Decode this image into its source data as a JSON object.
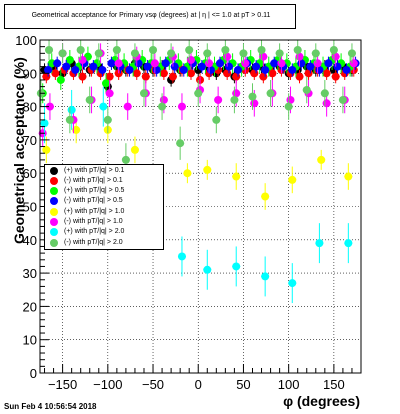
{
  "chart_data": {
    "type": "scatter",
    "title": "Geometrical acceptance for Primary vsφ (degrees) at | η | <= 1.0 at pT > 0.11",
    "xlabel": "φ (degrees)",
    "ylabel": "Geometrical acceptance (%)",
    "xlim": [
      -175,
      180
    ],
    "ylim": [
      0,
      100
    ],
    "x_ticks": [
      "−150",
      "−100",
      "−50",
      "0",
      "50",
      "100",
      "150"
    ],
    "x_tick_values": [
      -150,
      -100,
      -50,
      0,
      50,
      100,
      150
    ],
    "y_ticks": [
      "0",
      "10",
      "20",
      "30",
      "40",
      "50",
      "60",
      "70",
      "80",
      "90",
      "100"
    ],
    "y_tick_values": [
      0,
      10,
      20,
      30,
      40,
      50,
      60,
      70,
      80,
      90,
      100
    ],
    "grid": true,
    "legend_position": "left-middle",
    "series": [
      {
        "name": "(+) with pT/|q| > 0.1",
        "color": "#000000",
        "x": [
          -170,
          -160,
          -150,
          -140,
          -130,
          -120,
          -110,
          -100,
          -90,
          -80,
          -70,
          -60,
          -50,
          -40,
          -30,
          -20,
          -10,
          0,
          10,
          20,
          30,
          40,
          50,
          60,
          70,
          80,
          90,
          100,
          110,
          120,
          130,
          140,
          150,
          160,
          170
        ],
        "y": [
          91,
          92,
          90,
          93,
          92,
          91,
          92,
          86,
          92,
          91,
          93,
          92,
          91,
          92,
          88,
          91,
          92,
          91,
          92,
          90,
          91,
          89,
          92,
          91,
          92,
          91,
          92,
          90,
          91,
          92,
          91,
          92,
          91,
          92,
          91
        ],
        "err": [
          2,
          2,
          2,
          2,
          2,
          2,
          2,
          2,
          2,
          2,
          2,
          2,
          2,
          2,
          2,
          2,
          2,
          2,
          2,
          2,
          2,
          2,
          2,
          2,
          2,
          2,
          2,
          2,
          2,
          2,
          2,
          2,
          2,
          2,
          2
        ]
      },
      {
        "name": "(-) with pT/|q| > 0.1",
        "color": "#ff0000",
        "x": [
          -168,
          -158,
          -148,
          -138,
          -128,
          -118,
          -108,
          -98,
          -88,
          -78,
          -68,
          -58,
          -48,
          -38,
          -28,
          -18,
          -8,
          2,
          12,
          22,
          32,
          42,
          52,
          62,
          72,
          82,
          92,
          102,
          112,
          122,
          132,
          142,
          152,
          162,
          172
        ],
        "y": [
          89,
          90,
          91,
          90,
          89,
          91,
          90,
          89,
          90,
          91,
          90,
          89,
          91,
          90,
          89,
          91,
          90,
          88,
          90,
          91,
          90,
          89,
          91,
          90,
          89,
          90,
          91,
          90,
          89,
          90,
          91,
          90,
          89,
          90,
          91
        ],
        "err": [
          2,
          2,
          2,
          2,
          2,
          2,
          2,
          2,
          2,
          2,
          2,
          2,
          2,
          2,
          2,
          2,
          2,
          2,
          2,
          2,
          2,
          2,
          2,
          2,
          2,
          2,
          2,
          2,
          2,
          2,
          2,
          2,
          2,
          2,
          2
        ]
      },
      {
        "name": "(+) with pT/|q| > 0.5",
        "color": "#00ff00",
        "x": [
          -172,
          -162,
          -152,
          -142,
          -132,
          -122,
          -112,
          -102,
          -92,
          -82,
          -72,
          -62,
          -52,
          -42,
          -32,
          -22,
          -12,
          -2,
          8,
          18,
          28,
          38,
          48,
          58,
          68,
          78,
          88,
          98,
          108,
          118,
          128,
          138,
          148,
          158,
          168
        ],
        "y": [
          84,
          93,
          88,
          94,
          92,
          95,
          93,
          87,
          94,
          93,
          92,
          94,
          93,
          92,
          94,
          93,
          92,
          94,
          93,
          92,
          94,
          93,
          92,
          94,
          93,
          92,
          94,
          93,
          92,
          94,
          93,
          92,
          94,
          93,
          92
        ],
        "err": [
          3,
          3,
          3,
          3,
          3,
          3,
          3,
          3,
          3,
          3,
          3,
          3,
          3,
          3,
          3,
          3,
          3,
          3,
          3,
          3,
          3,
          3,
          3,
          3,
          3,
          3,
          3,
          3,
          3,
          3,
          3,
          3,
          3,
          3,
          3
        ]
      },
      {
        "name": "(-) with pT/|q| > 0.5",
        "color": "#0000ff",
        "x": [
          -166,
          -156,
          -146,
          -136,
          -126,
          -116,
          -106,
          -96,
          -86,
          -76,
          -66,
          -56,
          -46,
          -36,
          -26,
          -16,
          -6,
          4,
          14,
          24,
          34,
          44,
          54,
          64,
          74,
          84,
          94,
          104,
          114,
          124,
          134,
          144,
          154,
          164,
          174
        ],
        "y": [
          91,
          93,
          92,
          91,
          93,
          92,
          91,
          93,
          92,
          91,
          93,
          92,
          91,
          93,
          92,
          91,
          93,
          92,
          91,
          93,
          92,
          91,
          93,
          92,
          91,
          93,
          92,
          91,
          93,
          92,
          91,
          93,
          92,
          91,
          93
        ],
        "err": [
          2,
          2,
          2,
          2,
          2,
          2,
          2,
          2,
          2,
          2,
          2,
          2,
          2,
          2,
          2,
          2,
          2,
          2,
          2,
          2,
          2,
          2,
          2,
          2,
          2,
          2,
          2,
          2,
          2,
          2,
          2,
          2,
          2,
          2,
          2
        ]
      },
      {
        "name": "(+) with pT/|q| > 1.0",
        "color": "#ffff00",
        "x": [
          -168,
          -135,
          -100,
          -70,
          -12,
          10,
          42,
          74,
          104,
          136,
          166
        ],
        "y": [
          67,
          73,
          73,
          67,
          60,
          61,
          59,
          53,
          58,
          64,
          59
        ],
        "err": [
          4,
          4,
          4,
          4,
          3,
          3,
          4,
          4,
          4,
          3,
          4
        ]
      },
      {
        "name": "(-) with pT/|q| > 1.0",
        "color": "#ff00ff",
        "x": [
          -172,
          -164,
          -150,
          -138,
          -128,
          -118,
          -108,
          -98,
          -88,
          -78,
          -68,
          -58,
          -48,
          -38,
          -28,
          -18,
          -8,
          2,
          12,
          22,
          32,
          42,
          52,
          62,
          72,
          82,
          92,
          102,
          112,
          122,
          132,
          142,
          152,
          162,
          172
        ],
        "y": [
          72,
          80,
          96,
          76,
          94,
          82,
          96,
          84,
          93,
          80,
          95,
          84,
          93,
          82,
          95,
          80,
          94,
          85,
          93,
          82,
          95,
          84,
          93,
          81,
          95,
          84,
          93,
          82,
          95,
          84,
          93,
          81,
          95,
          82,
          93
        ],
        "err": [
          4,
          4,
          3,
          4,
          3,
          4,
          3,
          4,
          3,
          4,
          3,
          4,
          3,
          4,
          3,
          4,
          3,
          4,
          3,
          4,
          3,
          4,
          3,
          4,
          3,
          4,
          3,
          4,
          3,
          4,
          3,
          4,
          3,
          4,
          3
        ]
      },
      {
        "name": "(+) with pT/|q| > 2.0",
        "color": "#00ffff",
        "x": [
          -170,
          -140,
          -105,
          -48,
          -18,
          10,
          42,
          74,
          104,
          134,
          166
        ],
        "y": [
          75,
          79,
          80,
          55,
          35,
          31,
          32,
          29,
          27,
          39,
          39
        ],
        "err": [
          6,
          6,
          6,
          6,
          6,
          6,
          6,
          6,
          6,
          6,
          6
        ]
      },
      {
        "name": "(-) with pT/|q| > 2.0",
        "color": "#66cc66",
        "x": [
          -174,
          -165,
          -150,
          -142,
          -130,
          -120,
          -110,
          -100,
          -90,
          -80,
          -70,
          -60,
          -50,
          -40,
          -30,
          -20,
          -10,
          0,
          10,
          20,
          30,
          40,
          50,
          60,
          70,
          80,
          90,
          100,
          110,
          120,
          130,
          140,
          150,
          160,
          170
        ],
        "y": [
          84,
          97,
          96,
          76,
          97,
          82,
          96,
          76,
          97,
          64,
          96,
          84,
          97,
          80,
          96,
          69,
          97,
          84,
          96,
          76,
          97,
          82,
          96,
          83,
          97,
          84,
          96,
          80,
          97,
          85,
          96,
          84,
          97,
          82,
          96
        ],
        "err": [
          4,
          3,
          3,
          4,
          3,
          4,
          3,
          4,
          3,
          5,
          3,
          4,
          3,
          4,
          3,
          5,
          3,
          4,
          3,
          4,
          3,
          4,
          3,
          4,
          3,
          4,
          3,
          4,
          3,
          4,
          3,
          4,
          3,
          4,
          3
        ]
      }
    ]
  },
  "footer": {
    "datestamp": "Sun Feb  4 10:56:54 2018"
  }
}
